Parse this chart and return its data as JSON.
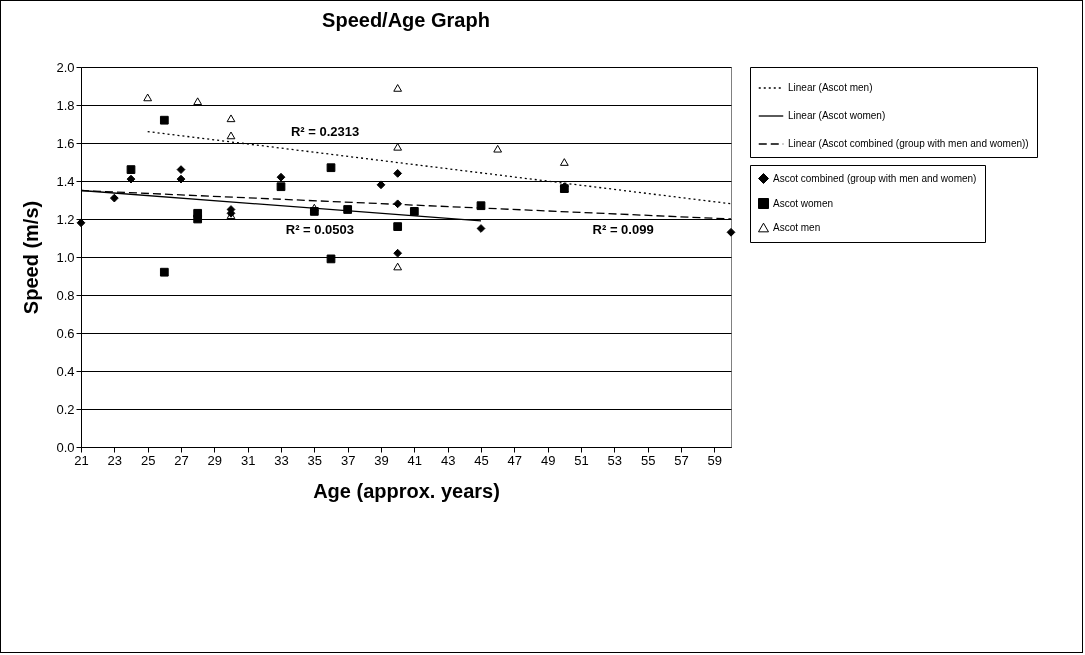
{
  "chart_data": {
    "type": "scatter",
    "title": "Speed/Age Graph",
    "xlabel": "Age (approx. years)",
    "ylabel": "Speed (m/s)",
    "xlim": [
      21,
      60
    ],
    "xticks": [
      21,
      23,
      25,
      27,
      29,
      31,
      33,
      35,
      37,
      39,
      41,
      43,
      45,
      47,
      49,
      51,
      53,
      55,
      57,
      59
    ],
    "ylim": [
      0,
      2
    ],
    "yticks": [
      {
        "value": 0,
        "label": "0.0"
      },
      0.2,
      0.4,
      0.6,
      0.8,
      {
        "value": 1,
        "label": "1.0"
      },
      1.2,
      1.4,
      1.6,
      1.8,
      {
        "value": 2,
        "label": "2.0"
      }
    ],
    "grid": "y",
    "legend": "right",
    "series": [
      {
        "name": "Ascot combined (group with men and women)",
        "marker": "diamond",
        "color": "#000000",
        "x": [
          21,
          23,
          24,
          27,
          27,
          30,
          30,
          33,
          39,
          40,
          40,
          40,
          45,
          50,
          60
        ],
        "values": [
          1.18,
          1.31,
          1.41,
          1.46,
          1.41,
          1.25,
          1.23,
          1.42,
          1.38,
          1.44,
          1.28,
          1.02,
          1.15,
          1.37,
          1.13
        ]
      },
      {
        "name": "Ascot women",
        "marker": "square",
        "color": "#000000",
        "x": [
          24,
          26,
          26,
          28,
          28,
          33,
          35,
          36,
          36,
          37,
          40,
          41,
          45,
          50
        ],
        "values": [
          1.46,
          1.72,
          0.92,
          1.23,
          1.2,
          1.37,
          1.24,
          1.47,
          0.99,
          1.25,
          1.16,
          1.24,
          1.27,
          1.36
        ]
      },
      {
        "name": "Ascot men",
        "marker": "triangle",
        "color": "#000000",
        "x": [
          25,
          28,
          30,
          30,
          30,
          35,
          40,
          40,
          40,
          46,
          50,
          50
        ],
        "values": [
          1.84,
          1.82,
          1.73,
          1.64,
          1.22,
          1.26,
          1.89,
          1.58,
          0.95,
          1.57,
          1.5,
          1.36
        ]
      },
      {
        "name": "Linear (Ascot men)",
        "type": "line",
        "line_style": "dotted",
        "color": "#000000",
        "x": [
          25,
          60
        ],
        "values": [
          1.66,
          1.28
        ]
      },
      {
        "name": "Linear (Ascot women)",
        "type": "line",
        "line_style": "solid",
        "color": "#000000",
        "x": [
          21,
          45
        ],
        "values": [
          1.35,
          1.19
        ]
      },
      {
        "name": "Linear (Ascot combined (group with men and women))",
        "type": "line",
        "line_style": "dashed",
        "color": "#000000",
        "x": [
          21,
          60
        ],
        "values": [
          1.35,
          1.2
        ]
      }
    ],
    "annotations": [
      "R² = 0.2313",
      "R² = 0.0503",
      "R² = 0.099"
    ]
  }
}
